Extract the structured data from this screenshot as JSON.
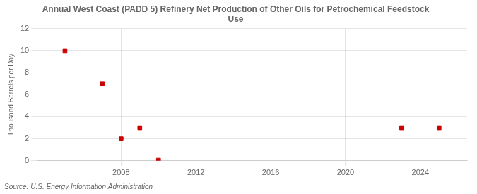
{
  "chart_data": {
    "type": "scatter",
    "title": [
      "Annual West Coast (PADD 5) Refinery Net Production of Other Oils for Petrochemical Feedstock",
      "Use"
    ],
    "ylabel": "Thousand Barrels per Day",
    "source": "Source: U.S. Energy Information Administration",
    "x": [
      2005,
      2007,
      2008,
      2009,
      2010,
      2023,
      2025
    ],
    "values": [
      10.0,
      7.0,
      2.0,
      3.0,
      0.05,
      3.0,
      3.0
    ],
    "color": "#cc0000",
    "marker": "square",
    "xlim": [
      2003.5,
      2026.5
    ],
    "ylim": [
      0,
      12
    ],
    "xticks": [
      2008,
      2012,
      2016,
      2020,
      2024
    ],
    "yticks": [
      0,
      2,
      4,
      6,
      8,
      10,
      12
    ],
    "grid": true
  }
}
